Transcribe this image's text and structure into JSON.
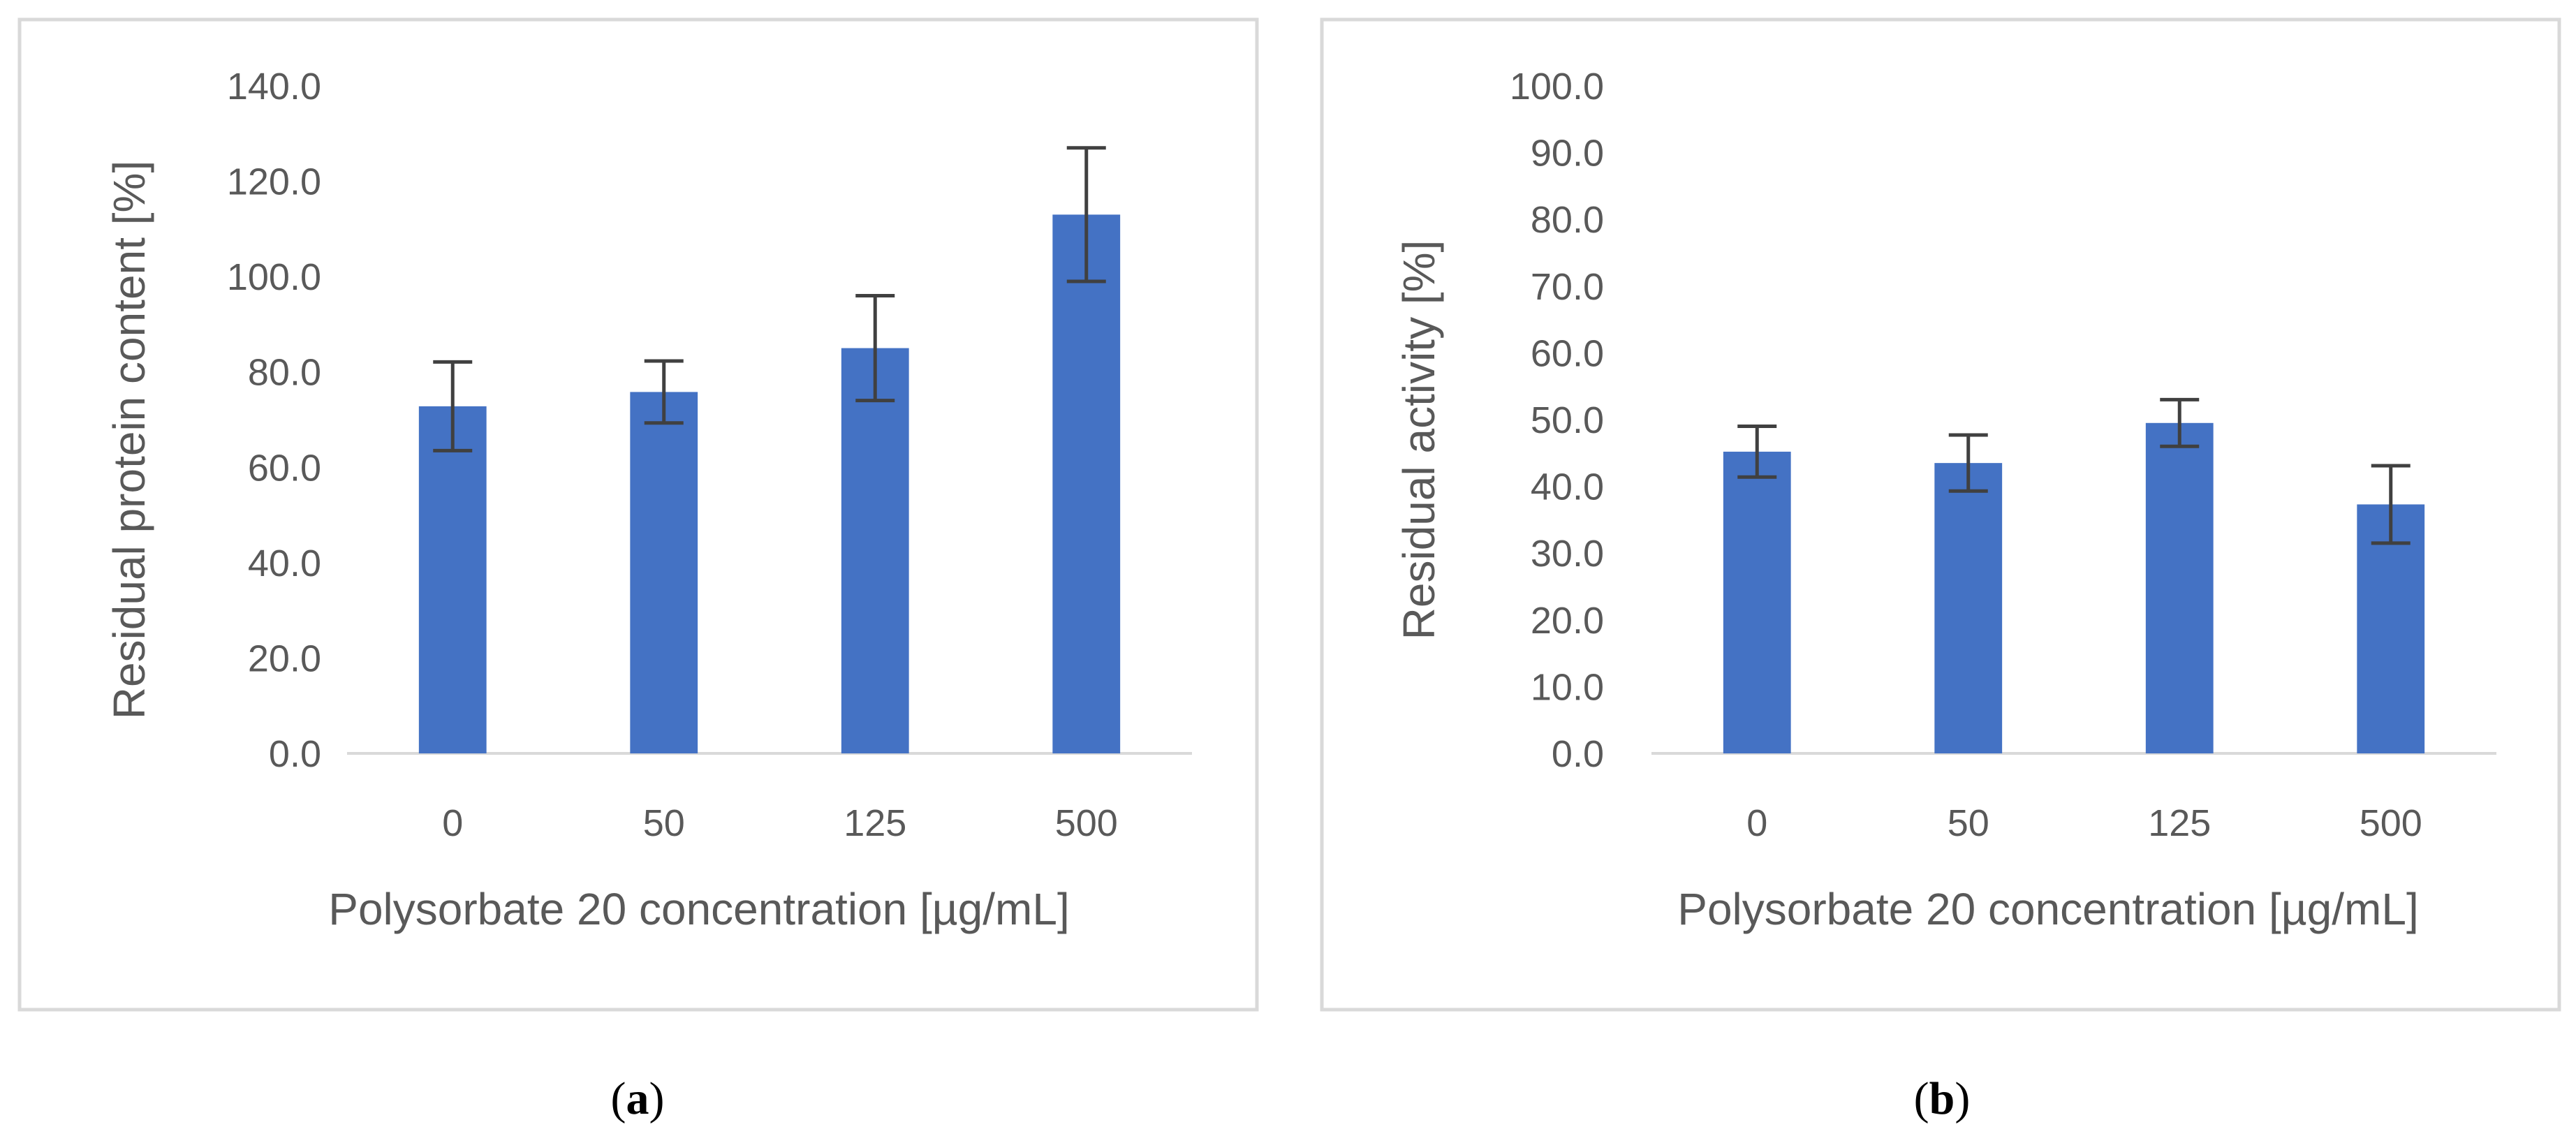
{
  "colors": {
    "bar": "#4472C4",
    "error_bar": "#404040",
    "axis": "#D9D9D9",
    "text": "#595959",
    "frame": "#D9D9D9"
  },
  "chart_data": [
    {
      "type": "bar",
      "panel": "a",
      "caption": {
        "open": "(",
        "letter": "a",
        "close": ")"
      },
      "title": "",
      "categories": [
        "0",
        "50",
        "125",
        "500"
      ],
      "values": [
        72.8,
        75.8,
        85.0,
        113.0
      ],
      "errors": [
        9.3,
        6.5,
        11.0,
        14.0
      ],
      "xlabel": "Polysorbate 20 concentration [µg/mL]",
      "ylabel": "Residual protein content [%]",
      "ylim": [
        0,
        140
      ],
      "yticks": [
        "0.0",
        "20.0",
        "40.0",
        "60.0",
        "80.0",
        "100.0",
        "120.0",
        "140.0"
      ],
      "ytick_values": [
        0,
        20,
        40,
        60,
        80,
        100,
        120,
        140
      ],
      "grid": false,
      "legend": "none"
    },
    {
      "type": "bar",
      "panel": "b",
      "caption": {
        "open": "(",
        "letter": "b",
        "close": ")"
      },
      "title": "",
      "categories": [
        "0",
        "50",
        "125",
        "500"
      ],
      "values": [
        45.2,
        43.5,
        49.5,
        37.3
      ],
      "errors": [
        3.8,
        4.2,
        3.5,
        5.8
      ],
      "xlabel": "Polysorbate 20 concentration [µg/mL]",
      "ylabel": "Residual activity [%]",
      "ylim": [
        0,
        100
      ],
      "yticks": [
        "0.0",
        "10.0",
        "20.0",
        "30.0",
        "40.0",
        "50.0",
        "60.0",
        "70.0",
        "80.0",
        "90.0",
        "100.0"
      ],
      "ytick_values": [
        0,
        10,
        20,
        30,
        40,
        50,
        60,
        70,
        80,
        90,
        100
      ],
      "grid": false,
      "legend": "none"
    }
  ]
}
